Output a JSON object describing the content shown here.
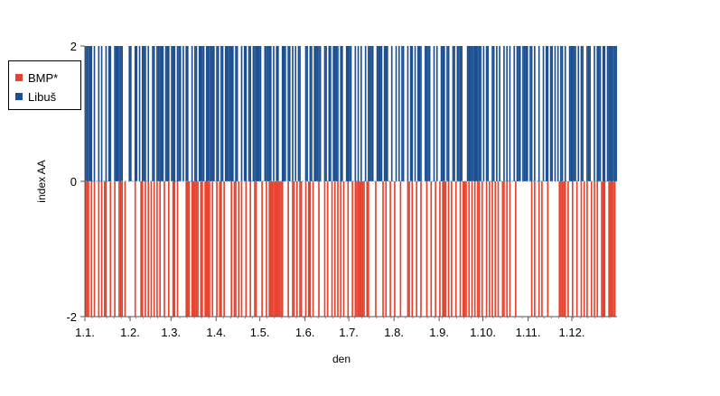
{
  "chart_data": {
    "type": "bar",
    "title": "",
    "xlabel": "den",
    "ylabel": "index AA",
    "ylim": [
      -2,
      2
    ],
    "y_ticks": [
      "2",
      "0",
      "-2"
    ],
    "x_tick_labels": [
      "1.1.",
      "1.2.",
      "1.3.",
      "1.4.",
      "1.5.",
      "1.6.",
      "1.7.",
      "1.8.",
      "1.9.",
      "1.10.",
      "1.11.",
      "1.12."
    ],
    "x_tick_days": [
      1,
      32,
      60,
      91,
      121,
      152,
      182,
      213,
      244,
      274,
      305,
      335
    ],
    "days_in_year": 365,
    "legend_placement": "left",
    "grid": false,
    "series": [
      {
        "name": "BMP*",
        "color": "#e8412c",
        "value": -2,
        "days": [
          1,
          2,
          3,
          5,
          7,
          10,
          12,
          14,
          15,
          18,
          21,
          24,
          25,
          26,
          28,
          35,
          39,
          40,
          42,
          44,
          46,
          48,
          50,
          52,
          55,
          58,
          61,
          62,
          64,
          70,
          71,
          72,
          74,
          75,
          76,
          77,
          78,
          80,
          81,
          83,
          84,
          85,
          86,
          88,
          91,
          93,
          94,
          96,
          101,
          103,
          104,
          106,
          108,
          111,
          114,
          117,
          118,
          122,
          125,
          127,
          128,
          129,
          130,
          131,
          132,
          133,
          134,
          135,
          136,
          140,
          143,
          144,
          146,
          148,
          149,
          152,
          154,
          155,
          157,
          161,
          165,
          167,
          170,
          172,
          174,
          176,
          178,
          181,
          184,
          186,
          187,
          188,
          189,
          190,
          191,
          192,
          194,
          195,
          200,
          205,
          207,
          210,
          213,
          217,
          222,
          223,
          225,
          228,
          231,
          235,
          238,
          241,
          244,
          246,
          247,
          248,
          250,
          252,
          255,
          258,
          260,
          261,
          262,
          264,
          266,
          268,
          270,
          271,
          273,
          276,
          278,
          280,
          282,
          284,
          287,
          288,
          290,
          292,
          296,
          307,
          309,
          312,
          314,
          318,
          326,
          327,
          328,
          329,
          330,
          332,
          335,
          338,
          341,
          343,
          345,
          348,
          350,
          352,
          355,
          356,
          357,
          360,
          361,
          362,
          363,
          364
        ]
      },
      {
        "name": "Libuš",
        "color": "#1b4f91",
        "value": 2,
        "days": [
          1,
          2,
          3,
          4,
          5,
          7,
          10,
          12,
          15,
          17,
          18,
          21,
          22,
          23,
          24,
          25,
          26,
          31,
          32,
          35,
          36,
          38,
          40,
          41,
          42,
          44,
          47,
          48,
          50,
          51,
          52,
          53,
          54,
          56,
          57,
          58,
          60,
          61,
          62,
          64,
          65,
          66,
          68,
          70,
          71,
          74,
          76,
          77,
          79,
          80,
          81,
          82,
          84,
          85,
          86,
          87,
          88,
          89,
          91,
          92,
          94,
          95,
          97,
          98,
          99,
          100,
          101,
          102,
          104,
          105,
          108,
          110,
          111,
          113,
          114,
          116,
          117,
          118,
          119,
          120,
          121,
          124,
          125,
          126,
          127,
          128,
          130,
          132,
          133,
          136,
          137,
          138,
          140,
          141,
          143,
          145,
          147,
          148,
          152,
          153,
          155,
          156,
          158,
          159,
          160,
          161,
          162,
          165,
          166,
          168,
          169,
          171,
          172,
          173,
          174,
          176,
          177,
          180,
          181,
          182,
          183,
          186,
          188,
          190,
          193,
          195,
          196,
          197,
          198,
          201,
          202,
          203,
          204,
          206,
          207,
          208,
          211,
          214,
          216,
          218,
          219,
          222,
          224,
          225,
          227,
          229,
          230,
          231,
          234,
          235,
          236,
          237,
          240,
          242,
          245,
          246,
          247,
          249,
          250,
          253,
          254,
          256,
          257,
          258,
          259,
          263,
          264,
          265,
          266,
          267,
          268,
          269,
          270,
          271,
          272,
          274,
          276,
          277,
          280,
          281,
          283,
          285,
          288,
          290,
          292,
          295,
          297,
          298,
          299,
          301,
          302,
          303,
          304,
          306,
          307,
          309,
          312,
          315,
          317,
          318,
          320,
          321,
          323,
          325,
          327,
          328,
          330,
          333,
          334,
          335,
          336,
          337,
          339,
          341,
          342,
          345,
          346,
          347,
          350,
          352,
          353,
          354,
          356,
          357,
          359,
          360,
          361,
          362,
          363,
          364,
          365
        ]
      }
    ]
  }
}
